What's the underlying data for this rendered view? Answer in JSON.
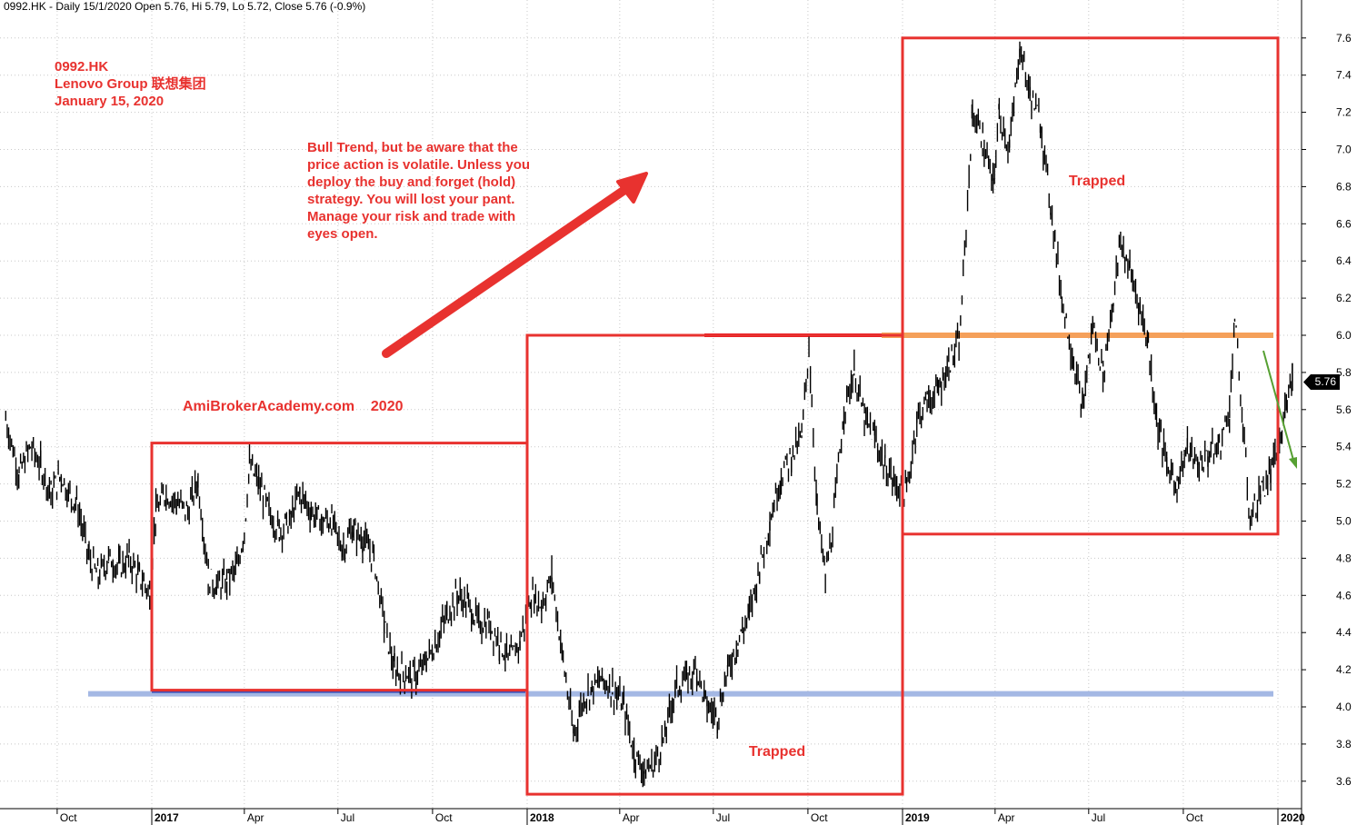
{
  "header": "0992.HK - Daily 15/1/2020 Open 5.76, Hi 5.79, Lo 5.72, Close 5.76 (-0.9%)",
  "title_block": {
    "line1": "0992.HK",
    "line2": "Lenovo Group 联想集团",
    "line3": "January 15, 2020"
  },
  "note": {
    "line1": "Bull Trend, but be aware that the",
    "line2": "price action is volatile. Unless you",
    "line3": "deploy the buy and forget (hold)",
    "line4": "strategy. You will lost your pant.",
    "line5": "Manage your risk and trade with",
    "line6": "eyes open."
  },
  "watermark": "AmiBrokerAcademy.com    2020",
  "trapped_labels": [
    "Trapped",
    "Trapped"
  ],
  "last_price_label": "5.76",
  "colors": {
    "annotation_red": "#e8322f",
    "support_blue": "#a4b8e4",
    "resistance_orange": "#f5a05a",
    "resistance_red": "#e8101e",
    "down_arrow_green": "#56a032",
    "price_bar": "#000000"
  },
  "chart_data": {
    "type": "line",
    "style": "ohlc-bars",
    "x_ticks": [
      "Oct",
      "2017",
      "Apr",
      "Jul",
      "Oct",
      "2018",
      "Apr",
      "Jul",
      "Oct",
      "2019",
      "Apr",
      "Jul",
      "Oct",
      "2020"
    ],
    "year_ticks": [
      "2017",
      "2018",
      "2019",
      "2020"
    ],
    "y_ticks": [
      "3.6",
      "3.8",
      "4.0",
      "4.2",
      "4.4",
      "4.6",
      "4.8",
      "5.0",
      "5.2",
      "5.4",
      "5.6",
      "5.8",
      "6.0",
      "6.2",
      "6.4",
      "6.6",
      "6.8",
      "7.0",
      "7.2",
      "7.4",
      "7.6"
    ],
    "ylim": [
      3.5,
      7.72
    ],
    "grid": true,
    "close_path": [
      [
        "2016-08-12",
        5.55
      ],
      [
        "2016-08-25",
        5.25
      ],
      [
        "2016-09-05",
        5.4
      ],
      [
        "2016-09-15",
        5.3
      ],
      [
        "2016-09-25",
        5.15
      ],
      [
        "2016-10-05",
        5.25
      ],
      [
        "2016-10-12",
        5.15
      ],
      [
        "2016-10-20",
        5.1
      ],
      [
        "2016-11-01",
        4.8
      ],
      [
        "2016-11-10",
        4.7
      ],
      [
        "2016-11-20",
        4.8
      ],
      [
        "2016-12-01",
        4.75
      ],
      [
        "2016-12-10",
        4.8
      ],
      [
        "2016-12-20",
        4.7
      ],
      [
        "2016-12-30",
        4.62
      ],
      [
        "2017-01-05",
        5.05
      ],
      [
        "2017-01-15",
        5.15
      ],
      [
        "2017-01-25",
        5.1
      ],
      [
        "2017-02-05",
        5.05
      ],
      [
        "2017-02-15",
        5.22
      ],
      [
        "2017-02-25",
        4.7
      ],
      [
        "2017-03-05",
        4.65
      ],
      [
        "2017-03-15",
        4.68
      ],
      [
        "2017-03-25",
        4.75
      ],
      [
        "2017-04-01",
        4.95
      ],
      [
        "2017-04-06",
        5.3
      ],
      [
        "2017-04-15",
        5.2
      ],
      [
        "2017-04-25",
        5.05
      ],
      [
        "2017-05-05",
        4.95
      ],
      [
        "2017-05-15",
        5.0
      ],
      [
        "2017-05-25",
        5.15
      ],
      [
        "2017-06-05",
        5.05
      ],
      [
        "2017-06-15",
        5.0
      ],
      [
        "2017-06-25",
        5.0
      ],
      [
        "2017-07-05",
        4.85
      ],
      [
        "2017-07-15",
        4.95
      ],
      [
        "2017-07-25",
        4.9
      ],
      [
        "2017-08-05",
        4.8
      ],
      [
        "2017-08-15",
        4.45
      ],
      [
        "2017-08-25",
        4.2
      ],
      [
        "2017-09-05",
        4.18
      ],
      [
        "2017-09-15",
        4.15
      ],
      [
        "2017-09-25",
        4.25
      ],
      [
        "2017-10-05",
        4.35
      ],
      [
        "2017-10-15",
        4.5
      ],
      [
        "2017-10-25",
        4.6
      ],
      [
        "2017-11-05",
        4.55
      ],
      [
        "2017-11-15",
        4.45
      ],
      [
        "2017-11-25",
        4.45
      ],
      [
        "2017-12-05",
        4.35
      ],
      [
        "2017-12-15",
        4.25
      ],
      [
        "2017-12-25",
        4.35
      ],
      [
        "2018-01-05",
        4.6
      ],
      [
        "2018-01-15",
        4.55
      ],
      [
        "2018-01-25",
        4.7
      ],
      [
        "2018-02-05",
        4.25
      ],
      [
        "2018-02-15",
        3.85
      ],
      [
        "2018-02-25",
        4.05
      ],
      [
        "2018-03-05",
        4.1
      ],
      [
        "2018-03-15",
        4.15
      ],
      [
        "2018-03-25",
        4.1
      ],
      [
        "2018-04-05",
        4.0
      ],
      [
        "2018-04-15",
        3.75
      ],
      [
        "2018-04-25",
        3.65
      ],
      [
        "2018-05-05",
        3.7
      ],
      [
        "2018-05-15",
        3.85
      ],
      [
        "2018-05-25",
        4.1
      ],
      [
        "2018-06-05",
        4.15
      ],
      [
        "2018-06-15",
        4.2
      ],
      [
        "2018-06-25",
        4.0
      ],
      [
        "2018-07-05",
        3.95
      ],
      [
        "2018-07-15",
        4.2
      ],
      [
        "2018-07-25",
        4.35
      ],
      [
        "2018-08-05",
        4.5
      ],
      [
        "2018-08-15",
        4.75
      ],
      [
        "2018-08-25",
        5.0
      ],
      [
        "2018-09-05",
        5.25
      ],
      [
        "2018-09-15",
        5.35
      ],
      [
        "2018-09-25",
        5.45
      ],
      [
        "2018-10-02",
        5.95
      ],
      [
        "2018-10-10",
        5.05
      ],
      [
        "2018-10-18",
        4.7
      ],
      [
        "2018-10-25",
        4.95
      ],
      [
        "2018-11-05",
        5.6
      ],
      [
        "2018-11-15",
        5.8
      ],
      [
        "2018-11-25",
        5.55
      ],
      [
        "2018-12-05",
        5.45
      ],
      [
        "2018-12-15",
        5.3
      ],
      [
        "2018-12-25",
        5.2
      ],
      [
        "2019-01-05",
        5.15
      ],
      [
        "2019-01-15",
        5.55
      ],
      [
        "2019-01-25",
        5.65
      ],
      [
        "2019-02-05",
        5.7
      ],
      [
        "2019-02-15",
        5.85
      ],
      [
        "2019-02-25",
        5.95
      ],
      [
        "2019-03-01",
        6.3
      ],
      [
        "2019-03-10",
        7.2
      ],
      [
        "2019-03-20",
        7.05
      ],
      [
        "2019-03-30",
        6.8
      ],
      [
        "2019-04-05",
        7.2
      ],
      [
        "2019-04-15",
        7.0
      ],
      [
        "2019-04-25",
        7.55
      ],
      [
        "2019-05-05",
        7.3
      ],
      [
        "2019-05-15",
        7.15
      ],
      [
        "2019-05-25",
        6.7
      ],
      [
        "2019-06-05",
        6.2
      ],
      [
        "2019-06-15",
        5.9
      ],
      [
        "2019-06-25",
        5.6
      ],
      [
        "2019-07-05",
        6.05
      ],
      [
        "2019-07-15",
        5.8
      ],
      [
        "2019-07-25",
        6.2
      ],
      [
        "2019-08-01",
        6.5
      ],
      [
        "2019-08-10",
        6.35
      ],
      [
        "2019-08-20",
        6.15
      ],
      [
        "2019-08-28",
        5.95
      ],
      [
        "2019-09-05",
        5.55
      ],
      [
        "2019-09-15",
        5.3
      ],
      [
        "2019-09-25",
        5.2
      ],
      [
        "2019-10-05",
        5.4
      ],
      [
        "2019-10-15",
        5.3
      ],
      [
        "2019-10-25",
        5.35
      ],
      [
        "2019-11-05",
        5.4
      ],
      [
        "2019-11-15",
        5.6
      ],
      [
        "2019-11-20",
        6.1
      ],
      [
        "2019-11-28",
        5.5
      ],
      [
        "2019-12-05",
        5.0
      ],
      [
        "2019-12-15",
        5.15
      ],
      [
        "2019-12-25",
        5.25
      ],
      [
        "2020-01-05",
        5.45
      ],
      [
        "2020-01-10",
        5.7
      ],
      [
        "2020-01-15",
        5.76
      ]
    ],
    "support_level": 4.07,
    "resistance_level": 6.0,
    "trap_boxes": [
      {
        "x": [
          "2017-01-01",
          "2018-01-01"
        ],
        "y": [
          4.09,
          5.42
        ]
      },
      {
        "x": [
          "2018-01-01",
          "2019-01-01"
        ],
        "y": [
          3.53,
          6.0
        ]
      },
      {
        "x": [
          "2019-01-01",
          "2020-01-01"
        ],
        "y": [
          4.93,
          7.6
        ]
      }
    ]
  }
}
